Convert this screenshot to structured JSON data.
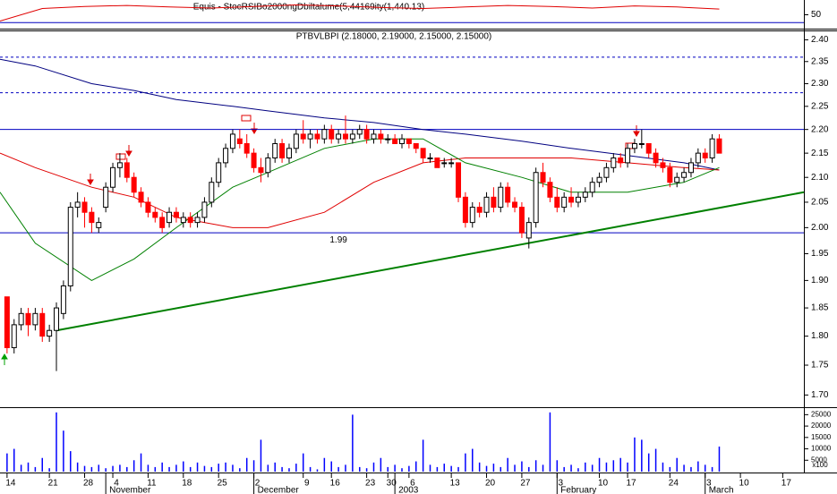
{
  "chart_data": [
    {
      "type": "line",
      "title": "Equis - StocRSIBo2000ngDbiltalume(5,44169ity(1,440.13)",
      "xlim": [
        -1,
        113
      ],
      "ylim": [
        25,
        75
      ],
      "yticks": [
        50
      ],
      "x": [
        -1,
        5,
        11,
        17,
        23,
        29,
        35,
        41,
        47,
        53,
        59,
        65,
        71,
        77,
        83,
        89,
        95,
        101
      ],
      "series": [
        {
          "color": "#e00000",
          "values": [
            38,
            62,
            66,
            68,
            65,
            63,
            66,
            69,
            67,
            64,
            62,
            65,
            68,
            66,
            63,
            67,
            65,
            61
          ]
        }
      ],
      "hlines": [
        {
          "value": 35,
          "color": "#0000c0"
        }
      ]
    },
    {
      "type": "candlestick",
      "title": "PTBVLBPI (2.18000, 2.19000, 2.15000, 2.15000)",
      "log_scale": true,
      "xlim": [
        -1,
        113
      ],
      "ylim": [
        1.68,
        2.42
      ],
      "yticks": [
        {
          "value": 1.7,
          "label": "1.70"
        },
        1.75,
        {
          "value": 1.8,
          "label": "1.80"
        },
        1.85,
        {
          "value": 1.9,
          "label": "1.90"
        },
        1.95,
        {
          "value": 2,
          "label": "2.00"
        },
        2.05,
        {
          "value": 2.1,
          "label": "2.10"
        },
        2.15,
        {
          "value": 2.2,
          "label": "2.20"
        },
        2.25,
        {
          "value": 2.3,
          "label": "2.30"
        },
        2.35,
        {
          "value": 2.4,
          "label": "2.40"
        }
      ],
      "up_color": "#ffffff",
      "down_color": "#ff0000",
      "ohlc": [
        [
          1.87,
          1.87,
          1.77,
          1.78
        ],
        [
          1.78,
          1.83,
          1.77,
          1.82
        ],
        [
          1.82,
          1.85,
          1.81,
          1.84
        ],
        [
          1.84,
          1.85,
          1.8,
          1.82
        ],
        [
          1.82,
          1.85,
          1.81,
          1.84
        ],
        [
          1.84,
          1.85,
          1.79,
          1.8
        ],
        [
          1.8,
          1.82,
          1.79,
          1.81
        ],
        [
          1.81,
          1.86,
          1.74,
          1.85
        ],
        [
          1.84,
          1.9,
          1.83,
          1.89
        ],
        [
          1.89,
          2.05,
          1.88,
          2.04
        ],
        [
          2.04,
          2.07,
          2.02,
          2.05
        ],
        [
          2.05,
          2.06,
          2.0,
          2.03
        ],
        [
          2.03,
          2.04,
          1.99,
          2.01
        ],
        [
          2.0,
          2.02,
          1.99,
          2.01
        ],
        [
          2.04,
          2.09,
          2.03,
          2.08
        ],
        [
          2.08,
          2.13,
          2.07,
          2.12
        ],
        [
          2.12,
          2.15,
          2.1,
          2.13
        ],
        [
          2.13,
          2.14,
          2.09,
          2.1
        ],
        [
          2.1,
          2.11,
          2.06,
          2.07
        ],
        [
          2.07,
          2.08,
          2.04,
          2.05
        ],
        [
          2.05,
          2.06,
          2.02,
          2.03
        ],
        [
          2.03,
          2.04,
          2.01,
          2.02
        ],
        [
          2.02,
          2.03,
          1.99,
          2.0
        ],
        [
          2.01,
          2.04,
          2.0,
          2.03
        ],
        [
          2.03,
          2.04,
          2.01,
          2.02
        ],
        [
          2.01,
          2.03,
          2.0,
          2.02
        ],
        [
          2.02,
          2.03,
          2.0,
          2.01
        ],
        [
          2.01,
          2.03,
          2.0,
          2.02
        ],
        [
          2.02,
          2.06,
          2.01,
          2.05
        ],
        [
          2.05,
          2.1,
          2.04,
          2.09
        ],
        [
          2.09,
          2.14,
          2.08,
          2.13
        ],
        [
          2.13,
          2.17,
          2.12,
          2.16
        ],
        [
          2.16,
          2.2,
          2.15,
          2.19
        ],
        [
          2.18,
          2.2,
          2.16,
          2.17
        ],
        [
          2.17,
          2.19,
          2.14,
          2.15
        ],
        [
          2.15,
          2.16,
          2.11,
          2.12
        ],
        [
          2.12,
          2.14,
          2.09,
          2.11
        ],
        [
          2.11,
          2.15,
          2.1,
          2.14
        ],
        [
          2.14,
          2.18,
          2.13,
          2.17
        ],
        [
          2.17,
          2.18,
          2.13,
          2.14
        ],
        [
          2.14,
          2.17,
          2.13,
          2.16
        ],
        [
          2.16,
          2.2,
          2.15,
          2.19
        ],
        [
          2.19,
          2.22,
          2.17,
          2.18
        ],
        [
          2.18,
          2.2,
          2.16,
          2.19
        ],
        [
          2.19,
          2.2,
          2.17,
          2.18
        ],
        [
          2.18,
          2.21,
          2.17,
          2.2
        ],
        [
          2.2,
          2.21,
          2.17,
          2.18
        ],
        [
          2.18,
          2.2,
          2.17,
          2.19
        ],
        [
          2.19,
          2.23,
          2.17,
          2.18
        ],
        [
          2.18,
          2.2,
          2.17,
          2.19
        ],
        [
          2.19,
          2.21,
          2.18,
          2.2
        ],
        [
          2.2,
          2.21,
          2.17,
          2.18
        ],
        [
          2.18,
          2.2,
          2.17,
          2.19
        ],
        [
          2.19,
          2.2,
          2.17,
          2.18
        ],
        [
          2.18,
          2.19,
          2.17,
          2.18
        ],
        [
          2.18,
          2.19,
          2.17,
          2.17
        ],
        [
          2.17,
          2.19,
          2.16,
          2.18
        ],
        [
          2.18,
          2.18,
          2.16,
          2.17
        ],
        [
          2.17,
          2.17,
          2.15,
          2.16
        ],
        [
          2.16,
          2.16,
          2.13,
          2.14
        ],
        [
          2.14,
          2.15,
          2.13,
          2.14
        ],
        [
          2.14,
          2.14,
          2.12,
          2.12
        ],
        [
          2.13,
          2.14,
          2.12,
          2.13
        ],
        [
          2.13,
          2.14,
          2.12,
          2.13
        ],
        [
          2.13,
          2.13,
          2.05,
          2.06
        ],
        [
          2.06,
          2.07,
          2.0,
          2.01
        ],
        [
          2.01,
          2.05,
          2.0,
          2.04
        ],
        [
          2.04,
          2.05,
          2.02,
          2.03
        ],
        [
          2.03,
          2.07,
          2.02,
          2.06
        ],
        [
          2.06,
          2.08,
          2.03,
          2.04
        ],
        [
          2.04,
          2.09,
          2.03,
          2.08
        ],
        [
          2.08,
          2.09,
          2.04,
          2.05
        ],
        [
          2.05,
          2.06,
          2.03,
          2.04
        ],
        [
          2.04,
          2.05,
          1.98,
          1.99
        ],
        [
          1.98,
          2.02,
          1.96,
          2.01
        ],
        [
          2.01,
          2.12,
          2.0,
          2.11
        ],
        [
          2.11,
          2.13,
          2.08,
          2.09
        ],
        [
          2.09,
          2.1,
          2.05,
          2.06
        ],
        [
          2.06,
          2.08,
          2.03,
          2.04
        ],
        [
          2.04,
          2.07,
          2.03,
          2.06
        ],
        [
          2.06,
          2.08,
          2.04,
          2.05
        ],
        [
          2.05,
          2.07,
          2.04,
          2.06
        ],
        [
          2.06,
          2.08,
          2.05,
          2.07
        ],
        [
          2.07,
          2.1,
          2.06,
          2.09
        ],
        [
          2.09,
          2.11,
          2.08,
          2.1
        ],
        [
          2.1,
          2.13,
          2.09,
          2.12
        ],
        [
          2.12,
          2.15,
          2.11,
          2.14
        ],
        [
          2.14,
          2.15,
          2.12,
          2.13
        ],
        [
          2.13,
          2.17,
          2.12,
          2.16
        ],
        [
          2.16,
          2.18,
          2.15,
          2.17
        ],
        [
          2.17,
          2.2,
          2.16,
          2.17
        ],
        [
          2.17,
          2.17,
          2.14,
          2.15
        ],
        [
          2.15,
          2.16,
          2.12,
          2.13
        ],
        [
          2.13,
          2.14,
          2.11,
          2.12
        ],
        [
          2.12,
          2.13,
          2.08,
          2.09
        ],
        [
          2.09,
          2.11,
          2.08,
          2.1
        ],
        [
          2.1,
          2.12,
          2.09,
          2.11
        ],
        [
          2.11,
          2.14,
          2.1,
          2.13
        ],
        [
          2.13,
          2.16,
          2.12,
          2.15
        ],
        [
          2.15,
          2.16,
          2.13,
          2.14
        ],
        [
          2.14,
          2.19,
          2.13,
          2.18
        ],
        [
          2.18,
          2.19,
          2.15,
          2.15
        ]
      ],
      "x": [
        -1,
        4,
        12,
        18,
        24,
        32,
        37,
        45,
        52,
        59,
        65,
        73,
        80,
        88,
        96,
        101
      ],
      "series": [
        {
          "color": "#000080",
          "values": [
            2.355,
            2.34,
            2.3,
            2.285,
            2.265,
            2.25,
            2.24,
            2.225,
            2.215,
            2.2,
            2.19,
            2.175,
            2.16,
            2.145,
            2.13,
            2.115
          ]
        },
        {
          "color": "#e00000",
          "values": [
            2.15,
            2.12,
            2.08,
            2.06,
            2.02,
            2.0,
            2.0,
            2.03,
            2.09,
            2.13,
            2.14,
            2.14,
            2.14,
            2.13,
            2.12,
            2.115
          ]
        },
        {
          "color": "#008000",
          "values": [
            2.07,
            1.97,
            1.9,
            1.94,
            2.0,
            2.08,
            2.11,
            2.16,
            2.18,
            2.18,
            2.13,
            2.1,
            2.07,
            2.07,
            2.09,
            2.12
          ]
        }
      ],
      "hlines": [
        {
          "value": 2.2,
          "color": "#0000c0"
        },
        {
          "value": 1.99,
          "color": "#0000c0",
          "label_x": 47
        },
        {
          "value": 2.36,
          "color": "#0000c0",
          "dashed": true
        },
        {
          "value": 2.28,
          "color": "#0000c0",
          "dashed": true
        }
      ],
      "trendline": {
        "x": [
          7,
          113
        ],
        "values": [
          1.81,
          2.07
        ],
        "color": "#008000"
      }
    },
    {
      "type": "bar",
      "xlim": [
        -1,
        113
      ],
      "ylim": [
        0,
        27500
      ],
      "yticks": [
        5000,
        10000,
        15000,
        20000,
        25000
      ],
      "yunit": "x100",
      "color": "#0000ff",
      "values": [
        8000,
        10000,
        3000,
        4000,
        2000,
        6000,
        1500,
        26000,
        18000,
        9000,
        4000,
        2500,
        2000,
        3000,
        1500,
        2500,
        3000,
        2000,
        5000,
        8000,
        3000,
        2000,
        4000,
        2000,
        3000,
        4500,
        2000,
        4000,
        2500,
        2000,
        3500,
        4000,
        3000,
        1500,
        6000,
        5000,
        14000,
        3000,
        4000,
        2000,
        1500,
        3500,
        8000,
        2000,
        1000,
        6000,
        4500,
        2000,
        3000,
        25000,
        2000,
        1500,
        4000,
        6000,
        2000,
        3000,
        1500,
        2500,
        4500,
        14000,
        3000,
        2000,
        3500,
        2500,
        2000,
        8000,
        10000,
        4000,
        2500,
        3500,
        2000,
        6000,
        3000,
        4500,
        2000,
        5000,
        3000,
        26000,
        5000,
        2000,
        3000,
        1500,
        4000,
        3000,
        6000,
        4000,
        5000,
        6000,
        4000,
        15000,
        14000,
        8000,
        10000,
        4000,
        2000,
        6000,
        3000,
        2000,
        4500,
        3000,
        2000,
        11000
      ],
      "xticks": [
        {
          "value": 0,
          "label": "14"
        },
        {
          "value": 6,
          "label": "21"
        },
        {
          "value": 11,
          "label": "28"
        },
        {
          "value": 15,
          "label": "4"
        },
        {
          "value": 20,
          "label": "11"
        },
        {
          "value": 25,
          "label": "18"
        },
        {
          "value": 30,
          "label": "25"
        },
        {
          "value": 35,
          "label": "2"
        },
        {
          "value": 42,
          "label": "9"
        },
        {
          "value": 46,
          "label": "16"
        },
        {
          "value": 51,
          "label": "23"
        },
        {
          "value": 54,
          "label": "30"
        },
        {
          "value": 57,
          "label": "6"
        },
        {
          "value": 63,
          "label": "13"
        },
        {
          "value": 68,
          "label": "20"
        },
        {
          "value": 73,
          "label": "27"
        },
        {
          "value": 78,
          "label": "3"
        },
        {
          "value": 84,
          "label": "10"
        },
        {
          "value": 88,
          "label": "17"
        },
        {
          "value": 94,
          "label": "24"
        },
        {
          "value": 99,
          "label": "3"
        },
        {
          "value": 104,
          "label": "10"
        },
        {
          "value": 110,
          "label": "17"
        }
      ],
      "xgroups": [
        {
          "value": 14,
          "label": "November"
        },
        {
          "value": 35,
          "label": "December"
        },
        {
          "value": 55,
          "label": "2003"
        },
        {
          "value": 78,
          "label": "February"
        },
        {
          "value": 99,
          "label": "March"
        }
      ]
    }
  ]
}
